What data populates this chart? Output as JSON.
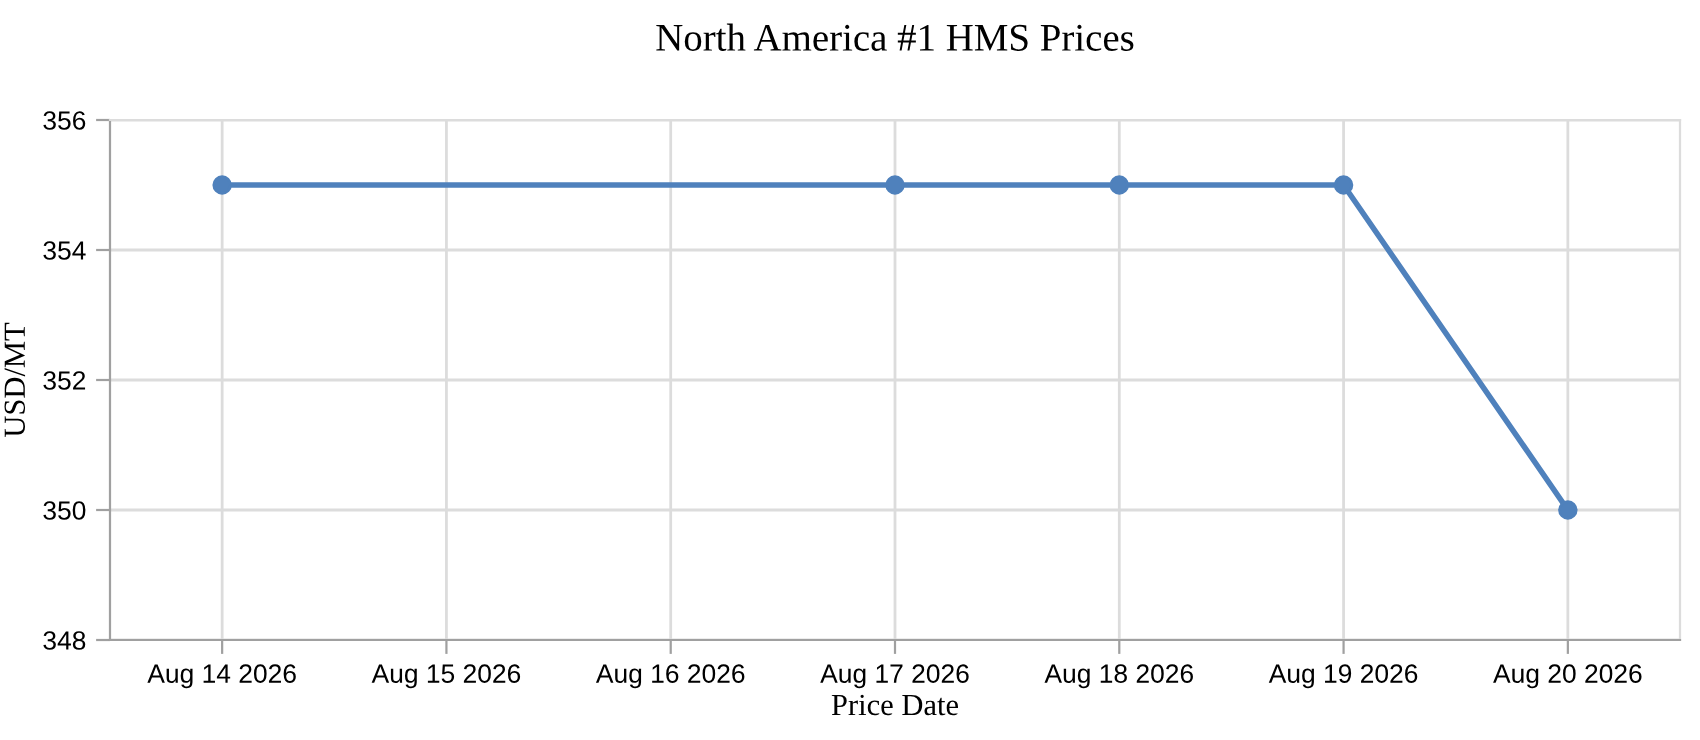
{
  "chart_data": {
    "type": "line",
    "title": "North America #1 HMS Prices",
    "xlabel": "Price Date",
    "ylabel": "USD/MT",
    "x": [
      "2026-08-14",
      "2026-08-17",
      "2026-08-18",
      "2026-08-19",
      "2026-08-20"
    ],
    "series": [
      {
        "color": "#4f81bc",
        "values": [
          355,
          355,
          355,
          355,
          350
        ]
      }
    ],
    "xlim": [
      "2026-08-13T12:00",
      "2026-08-20T12:00"
    ],
    "xticks": [
      {
        "value": "2026-08-14",
        "label": "Aug 14 2026"
      },
      {
        "value": "2026-08-15",
        "label": "Aug 15 2026"
      },
      {
        "value": "2026-08-16",
        "label": "Aug 16 2026"
      },
      {
        "value": "2026-08-17",
        "label": "Aug 17 2026"
      },
      {
        "value": "2026-08-18",
        "label": "Aug 18 2026"
      },
      {
        "value": "2026-08-19",
        "label": "Aug 19 2026"
      },
      {
        "value": "2026-08-20",
        "label": "Aug 20 2026"
      }
    ],
    "ylim": [
      348,
      356
    ],
    "yticks": [
      348,
      350,
      352,
      354,
      356
    ],
    "grid": true,
    "marker": "circle",
    "line_style": "solid"
  }
}
